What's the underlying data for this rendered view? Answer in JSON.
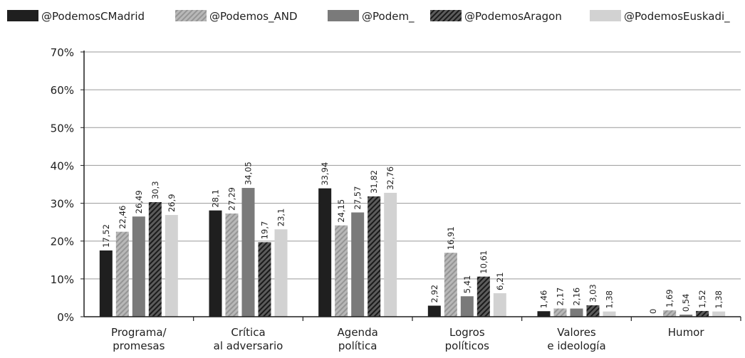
{
  "chart_data": {
    "type": "bar",
    "categories": [
      [
        "Programa/",
        "promesas"
      ],
      [
        "Crítica",
        "al adversario"
      ],
      [
        "Agenda",
        "política"
      ],
      [
        "Logros",
        "políticos"
      ],
      [
        "Valores",
        "e ideología"
      ],
      [
        "Humor"
      ]
    ],
    "series": [
      {
        "name": "@PodemosCMadrid",
        "color": "#1f1f1f",
        "pattern": "solid",
        "values": [
          17.52,
          28.1,
          33.94,
          2.92,
          1.46,
          0
        ],
        "labels": [
          "17,52",
          "28,1",
          "33,94",
          "2,92",
          "1,46",
          "0"
        ]
      },
      {
        "name": "@Podemos_AND",
        "color": "#ababab",
        "pattern": "light-diagonal-hatch",
        "values": [
          22.46,
          27.29,
          24.15,
          16.91,
          2.17,
          1.69
        ],
        "labels": [
          "22,46",
          "27,29",
          "24,15",
          "16,91",
          "2,17",
          "1,69"
        ]
      },
      {
        "name": "@Podem_",
        "color": "#7a7a7a",
        "pattern": "solid",
        "values": [
          26.49,
          34.05,
          27.57,
          5.41,
          2.16,
          0.54
        ],
        "labels": [
          "26,49",
          "34,05",
          "27,57",
          "5,41",
          "2,16",
          "0,54"
        ]
      },
      {
        "name": "@PodemosAragon",
        "color": "#3c3c3c",
        "pattern": "dark-diagonal-hatch",
        "values": [
          30.3,
          19.7,
          31.82,
          10.61,
          3.03,
          1.52
        ],
        "labels": [
          "30,3",
          "19,7",
          "31,82",
          "10,61",
          "3,03",
          "1,52"
        ]
      },
      {
        "name": "@PodemosEuskadi_",
        "color": "#d2d2d2",
        "pattern": "solid",
        "values": [
          26.9,
          23.1,
          32.76,
          6.21,
          1.38,
          1.38
        ],
        "labels": [
          "26,9",
          "23,1",
          "32,76",
          "6,21",
          "1,38",
          "1,38"
        ]
      }
    ],
    "ylim": [
      0,
      70
    ],
    "yticks": [
      "0%",
      "10%",
      "20%",
      "30%",
      "40%",
      "50%",
      "60%",
      "70%"
    ],
    "grid": true,
    "legend_position": "top"
  }
}
